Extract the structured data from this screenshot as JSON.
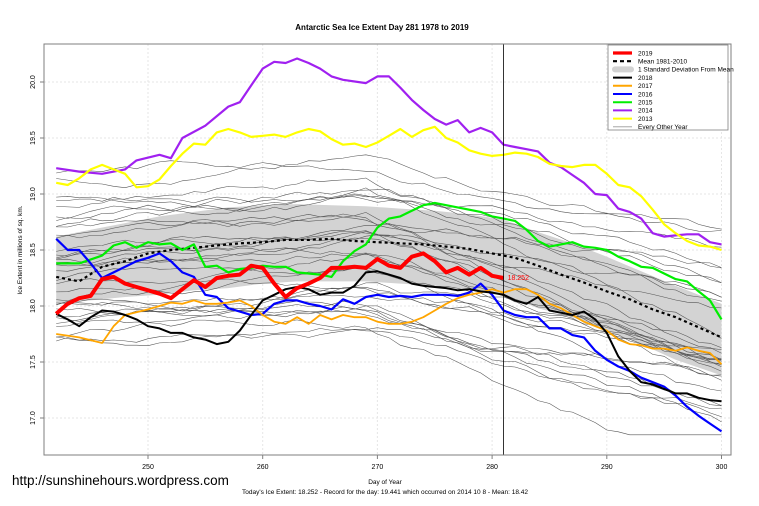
{
  "watermark": "http://sunshinehours.wordpress.com",
  "chart_data": {
    "type": "line",
    "title": "Antarctic Sea Ice Extent Day 281 1978 to 2019",
    "xlabel": "Day of Year",
    "ylabel": "Ice Extent in millions of sq. km.",
    "footer": "Today's Ice Extent: 18.252  - Record for the day: 19.441 which occurred on 2014 10 8  - Mean: 18.42",
    "xlim": [
      241,
      300.7
    ],
    "ylim": [
      16.7,
      20.35
    ],
    "xticks": [
      250,
      260,
      270,
      280,
      290,
      300
    ],
    "yticks": [
      "17.0",
      "17.5",
      "18.0",
      "18.5",
      "19.0",
      "19.5",
      "20.0"
    ],
    "grid": true,
    "current_day": 281,
    "current_value_label": "18.252",
    "legend_position": "top-right",
    "legend": [
      {
        "label": "2019",
        "color": "#ff0000",
        "style": "thick"
      },
      {
        "label": "Mean 1981-2010",
        "color": "#000000",
        "style": "dashed"
      },
      {
        "label": "1 Standard Deviation From Mean",
        "color": "#d3d3d3",
        "style": "band"
      },
      {
        "label": "2018",
        "color": "#000000",
        "style": "solid"
      },
      {
        "label": "2017",
        "color": "#ffa500",
        "style": "solid"
      },
      {
        "label": "2016",
        "color": "#0000ff",
        "style": "solid"
      },
      {
        "label": "2015",
        "color": "#00ee00",
        "style": "solid"
      },
      {
        "label": "2014",
        "color": "#a020f0",
        "style": "solid"
      },
      {
        "label": "2013",
        "color": "#ffff00",
        "style": "solid"
      },
      {
        "label": "Every Other Year",
        "color": "#808080",
        "style": "thin"
      }
    ],
    "band": {
      "x": [
        242,
        245,
        248,
        251,
        254,
        257,
        260,
        263,
        266,
        269,
        272,
        275,
        278,
        281,
        284,
        287,
        290,
        293,
        296,
        300
      ],
      "upper": [
        18.62,
        18.68,
        18.74,
        18.8,
        18.84,
        18.88,
        18.9,
        18.91,
        18.9,
        18.89,
        18.87,
        18.85,
        18.82,
        18.77,
        18.66,
        18.56,
        18.44,
        18.31,
        18.18,
        18.02
      ],
      "lower": [
        18.02,
        18.05,
        18.08,
        18.1,
        18.14,
        18.16,
        18.2,
        18.22,
        18.22,
        18.22,
        18.2,
        18.18,
        18.15,
        18.1,
        17.98,
        17.9,
        17.78,
        17.66,
        17.52,
        17.38
      ]
    },
    "mean": {
      "x": [
        242,
        244,
        246,
        248,
        250,
        252,
        254,
        256,
        258,
        260,
        262,
        264,
        266,
        268,
        270,
        272,
        274,
        276,
        278,
        280,
        282,
        284,
        286,
        288,
        290,
        292,
        294,
        296,
        298,
        300
      ],
      "values": [
        18.26,
        18.22,
        18.35,
        18.4,
        18.47,
        18.5,
        18.52,
        18.54,
        18.56,
        18.57,
        18.59,
        18.59,
        18.6,
        18.58,
        18.57,
        18.56,
        18.55,
        18.53,
        18.51,
        18.47,
        18.43,
        18.36,
        18.28,
        18.21,
        18.13,
        18.06,
        17.97,
        17.9,
        17.81,
        17.72
      ]
    },
    "series": [
      {
        "name": "2014",
        "color": "#a020f0",
        "width": 2.2,
        "x": [
          242,
          244,
          246,
          248,
          249,
          251,
          252,
          253,
          255,
          257,
          258,
          259,
          260,
          261,
          262,
          263,
          264,
          265,
          266,
          267,
          269,
          270,
          271,
          272,
          273,
          274,
          275,
          276,
          277,
          278,
          279,
          280,
          281,
          282,
          283,
          284,
          285,
          286,
          287,
          288,
          289,
          290,
          291,
          292,
          293,
          294,
          295,
          296,
          297,
          298,
          299,
          300
        ],
        "values": [
          19.23,
          19.2,
          19.18,
          19.22,
          19.3,
          19.35,
          19.32,
          19.5,
          19.61,
          19.78,
          19.82,
          19.97,
          20.12,
          20.18,
          20.17,
          20.21,
          20.17,
          20.12,
          20.05,
          20.02,
          19.99,
          20.05,
          20.05,
          19.95,
          19.84,
          19.75,
          19.67,
          19.62,
          19.66,
          19.55,
          19.59,
          19.55,
          19.44,
          19.42,
          19.4,
          19.38,
          19.28,
          19.24,
          19.17,
          19.1,
          19.0,
          18.99,
          18.87,
          18.84,
          18.78,
          18.65,
          18.62,
          18.63,
          18.64,
          18.64,
          18.57,
          18.55
        ]
      },
      {
        "name": "2013",
        "color": "#ffff00",
        "width": 2.2,
        "x": [
          242,
          243,
          244,
          245,
          246,
          247,
          248,
          249,
          250,
          251,
          252,
          253,
          254,
          255,
          256,
          257,
          258,
          259,
          260,
          261,
          262,
          263,
          264,
          265,
          266,
          267,
          268,
          269,
          270,
          271,
          272,
          273,
          274,
          275,
          276,
          277,
          278,
          279,
          280,
          281,
          282,
          283,
          284,
          285,
          286,
          287,
          288,
          289,
          290,
          291,
          292,
          293,
          294,
          295,
          296,
          297,
          298,
          299,
          300
        ],
        "values": [
          19.1,
          19.08,
          19.14,
          19.22,
          19.26,
          19.22,
          19.18,
          19.06,
          19.07,
          19.13,
          19.25,
          19.36,
          19.45,
          19.44,
          19.55,
          19.58,
          19.55,
          19.51,
          19.52,
          19.53,
          19.51,
          19.55,
          19.58,
          19.56,
          19.49,
          19.44,
          19.45,
          19.42,
          19.46,
          19.52,
          19.58,
          19.51,
          19.57,
          19.6,
          19.5,
          19.46,
          19.39,
          19.36,
          19.34,
          19.35,
          19.37,
          19.36,
          19.33,
          19.27,
          19.25,
          19.24,
          19.26,
          19.26,
          19.18,
          19.08,
          19.06,
          18.98,
          18.86,
          18.73,
          18.65,
          18.58,
          18.54,
          18.53,
          18.5
        ]
      },
      {
        "name": "2015",
        "color": "#00ee00",
        "width": 2.2,
        "x": [
          242,
          244,
          246,
          247,
          248,
          249,
          250,
          251,
          252,
          253,
          254,
          255,
          256,
          257,
          258,
          259,
          260,
          261,
          262,
          263,
          264,
          265,
          266,
          267,
          268,
          269,
          270,
          271,
          272,
          273,
          274,
          275,
          276,
          277,
          278,
          279,
          280,
          281,
          282,
          283,
          284,
          285,
          286,
          287,
          288,
          289,
          290,
          291,
          292,
          293,
          294,
          295,
          296,
          297,
          298,
          299,
          300
        ],
        "values": [
          18.38,
          18.38,
          18.45,
          18.54,
          18.57,
          18.52,
          18.57,
          18.55,
          18.56,
          18.5,
          18.55,
          18.35,
          18.36,
          18.3,
          18.33,
          18.34,
          18.36,
          18.35,
          18.35,
          18.3,
          18.29,
          18.28,
          18.26,
          18.4,
          18.49,
          18.55,
          18.7,
          18.78,
          18.8,
          18.85,
          18.9,
          18.92,
          18.9,
          18.88,
          18.86,
          18.84,
          18.8,
          18.78,
          18.76,
          18.68,
          18.58,
          18.53,
          18.55,
          18.57,
          18.53,
          18.52,
          18.5,
          18.44,
          18.4,
          18.35,
          18.34,
          18.29,
          18.24,
          18.22,
          18.13,
          18.05,
          17.88
        ]
      },
      {
        "name": "2016",
        "color": "#0000ff",
        "width": 2.2,
        "x": [
          242,
          243,
          244,
          245,
          246,
          247,
          248,
          249,
          250,
          251,
          252,
          253,
          254,
          255,
          256,
          257,
          258,
          259,
          260,
          261,
          262,
          263,
          264,
          265,
          266,
          267,
          268,
          269,
          270,
          271,
          272,
          273,
          274,
          275,
          276,
          277,
          278,
          279,
          280,
          281,
          282,
          283,
          284,
          285,
          286,
          287,
          288,
          289,
          290,
          291,
          292,
          293,
          294,
          295,
          296,
          297,
          298,
          299,
          300
        ],
        "values": [
          18.6,
          18.5,
          18.5,
          18.38,
          18.25,
          18.3,
          18.35,
          18.4,
          18.43,
          18.47,
          18.4,
          18.3,
          18.26,
          18.1,
          18.08,
          17.98,
          17.95,
          17.92,
          17.93,
          18.02,
          18.05,
          18.05,
          18.02,
          18.0,
          17.97,
          18.06,
          18.02,
          18.08,
          18.1,
          18.08,
          18.09,
          18.08,
          18.1,
          18.1,
          18.1,
          18.09,
          18.12,
          18.2,
          18.1,
          17.96,
          17.92,
          17.9,
          17.9,
          17.8,
          17.8,
          17.74,
          17.72,
          17.6,
          17.52,
          17.46,
          17.42,
          17.36,
          17.32,
          17.28,
          17.2,
          17.1,
          17.02,
          16.95,
          16.88
        ]
      },
      {
        "name": "2017",
        "color": "#ffa500",
        "width": 1.8,
        "x": [
          242,
          244,
          246,
          247,
          248,
          250,
          251,
          252,
          253,
          254,
          255,
          256,
          257,
          258,
          259,
          260,
          261,
          262,
          263,
          264,
          265,
          266,
          267,
          268,
          269,
          270,
          271,
          272,
          273,
          274,
          275,
          276,
          277,
          278,
          279,
          280,
          281,
          282,
          283,
          284,
          285,
          286,
          287,
          288,
          289,
          290,
          291,
          292,
          293,
          294,
          295,
          296,
          297,
          298,
          299,
          300
        ],
        "values": [
          17.75,
          17.72,
          17.67,
          17.82,
          17.92,
          17.97,
          18.0,
          18.03,
          18.02,
          18.05,
          18.02,
          18.02,
          18.03,
          18.05,
          18.0,
          17.92,
          17.86,
          17.84,
          17.9,
          17.84,
          17.92,
          17.88,
          17.92,
          17.9,
          17.9,
          17.86,
          17.84,
          17.84,
          17.86,
          17.9,
          17.96,
          18.02,
          18.07,
          18.1,
          18.12,
          18.15,
          18.12,
          18.15,
          18.15,
          18.1,
          18.02,
          17.98,
          17.92,
          17.86,
          17.82,
          17.78,
          17.7,
          17.66,
          17.65,
          17.62,
          17.62,
          17.6,
          17.63,
          17.6,
          17.58,
          17.48
        ]
      },
      {
        "name": "2018",
        "color": "#000000",
        "width": 2.0,
        "x": [
          242,
          243,
          244,
          245,
          246,
          247,
          248,
          249,
          250,
          251,
          252,
          253,
          254,
          255,
          256,
          257,
          258,
          259,
          260,
          261,
          262,
          263,
          264,
          265,
          266,
          267,
          268,
          269,
          270,
          271,
          272,
          273,
          274,
          275,
          276,
          277,
          278,
          279,
          280,
          281,
          282,
          283,
          284,
          285,
          286,
          287,
          288,
          289,
          290,
          291,
          292,
          293,
          294,
          295,
          296,
          297,
          298,
          299,
          300
        ],
        "values": [
          17.93,
          17.88,
          17.82,
          17.9,
          17.96,
          17.95,
          17.92,
          17.88,
          17.82,
          17.8,
          17.76,
          17.76,
          17.72,
          17.7,
          17.66,
          17.68,
          17.78,
          17.92,
          18.05,
          18.1,
          18.15,
          18.17,
          18.15,
          18.1,
          18.12,
          18.12,
          18.18,
          18.3,
          18.31,
          18.28,
          18.25,
          18.2,
          18.18,
          18.17,
          18.16,
          18.14,
          18.15,
          18.13,
          18.12,
          18.1,
          18.05,
          18.02,
          18.08,
          17.96,
          17.94,
          17.92,
          17.95,
          17.88,
          17.76,
          17.55,
          17.42,
          17.32,
          17.3,
          17.26,
          17.22,
          17.22,
          17.18,
          17.16,
          17.15
        ]
      },
      {
        "name": "2019",
        "color": "#ff0000",
        "width": 4.0,
        "x": [
          242,
          243,
          244,
          245,
          246,
          247,
          248,
          249,
          250,
          251,
          252,
          253,
          254,
          255,
          256,
          257,
          258,
          259,
          260,
          261,
          262,
          263,
          264,
          265,
          266,
          267,
          268,
          269,
          270,
          271,
          272,
          273,
          274,
          275,
          276,
          277,
          278,
          279,
          280,
          281
        ],
        "values": [
          17.93,
          18.02,
          18.07,
          18.09,
          18.24,
          18.26,
          18.2,
          18.17,
          18.14,
          18.11,
          18.07,
          18.15,
          18.23,
          18.17,
          18.25,
          18.27,
          18.28,
          18.36,
          18.34,
          18.2,
          18.08,
          18.16,
          18.2,
          18.25,
          18.34,
          18.34,
          18.35,
          18.34,
          18.42,
          18.36,
          18.34,
          18.44,
          18.47,
          18.4,
          18.3,
          18.34,
          18.28,
          18.34,
          18.27,
          18.25
        ]
      }
    ]
  }
}
